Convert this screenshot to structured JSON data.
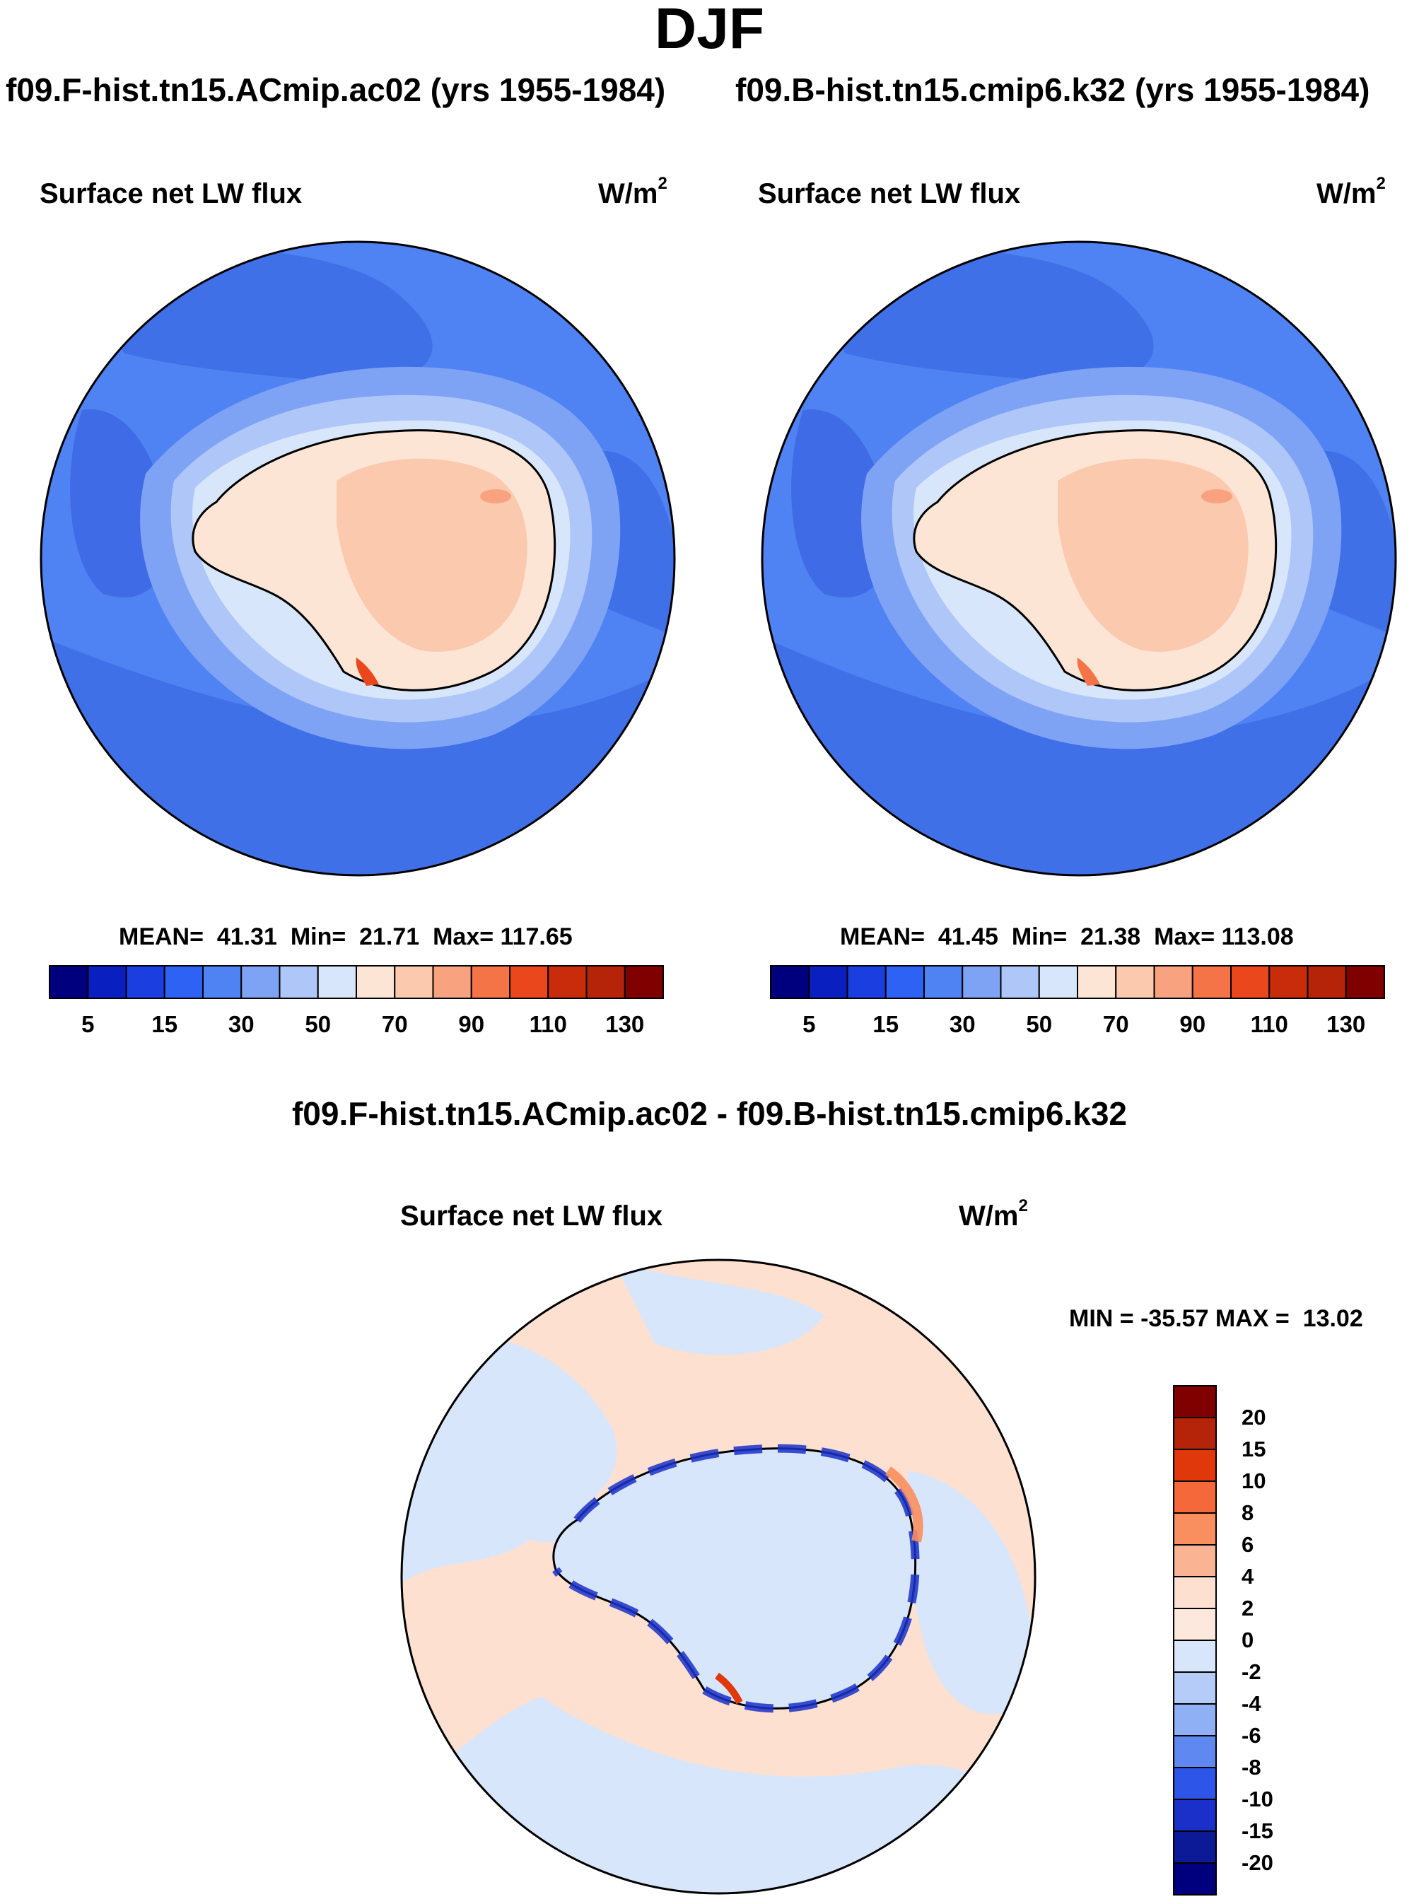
{
  "title": "DJF",
  "case_left": "f09.F-hist.tn15.ACmip.ac02 (yrs 1955-1984)",
  "case_right": "f09.B-hist.tn15.cmip6.k32 (yrs 1955-1984)",
  "diff_title": "f09.F-hist.tn15.ACmip.ac02 - f09.B-hist.tn15.cmip6.k32",
  "variable": "Surface net LW flux",
  "units_base": "W/m",
  "units_exp": "2",
  "panels": [
    {
      "stats": "MEAN=  41.31  Min=  21.71  Max= 117.65"
    },
    {
      "stats": "MEAN=  41.45  Min=  21.38  Max= 113.08"
    }
  ],
  "diff_stats": "MIN = -35.57 MAX =  13.02",
  "colorbar_ticks": [
    "5",
    "15",
    "30",
    "50",
    "70",
    "90",
    "110",
    "130"
  ],
  "diff_colorbar_ticks": [
    "20",
    "15",
    "10",
    "8",
    "6",
    "4",
    "2",
    "0",
    "-2",
    "-4",
    "-6",
    "-8",
    "-10",
    "-15",
    "-20"
  ],
  "colors": {
    "abs_scale": [
      "#00007f",
      "#0a1fbf",
      "#1a3ee0",
      "#2e62f4",
      "#4f82f2",
      "#7ea3f4",
      "#aec6f8",
      "#d8e6fb",
      "#fde5d6",
      "#fbc9ae",
      "#f9a280",
      "#f57447",
      "#eb471d",
      "#c92c0a",
      "#b52409",
      "#800000"
    ],
    "diff_scale": [
      "#800000",
      "#b52409",
      "#e0380b",
      "#f4683a",
      "#f98e5e",
      "#fbb493",
      "#fde0cf",
      "#fce8dc",
      "#d8e6fb",
      "#b5ccf8",
      "#90b0f5",
      "#5f88f0",
      "#2d55e8",
      "#1a30c8",
      "#0d1a98",
      "#00007f"
    ],
    "land_high": "#f9d2bd",
    "ocean_deep": "#4070e8"
  }
}
